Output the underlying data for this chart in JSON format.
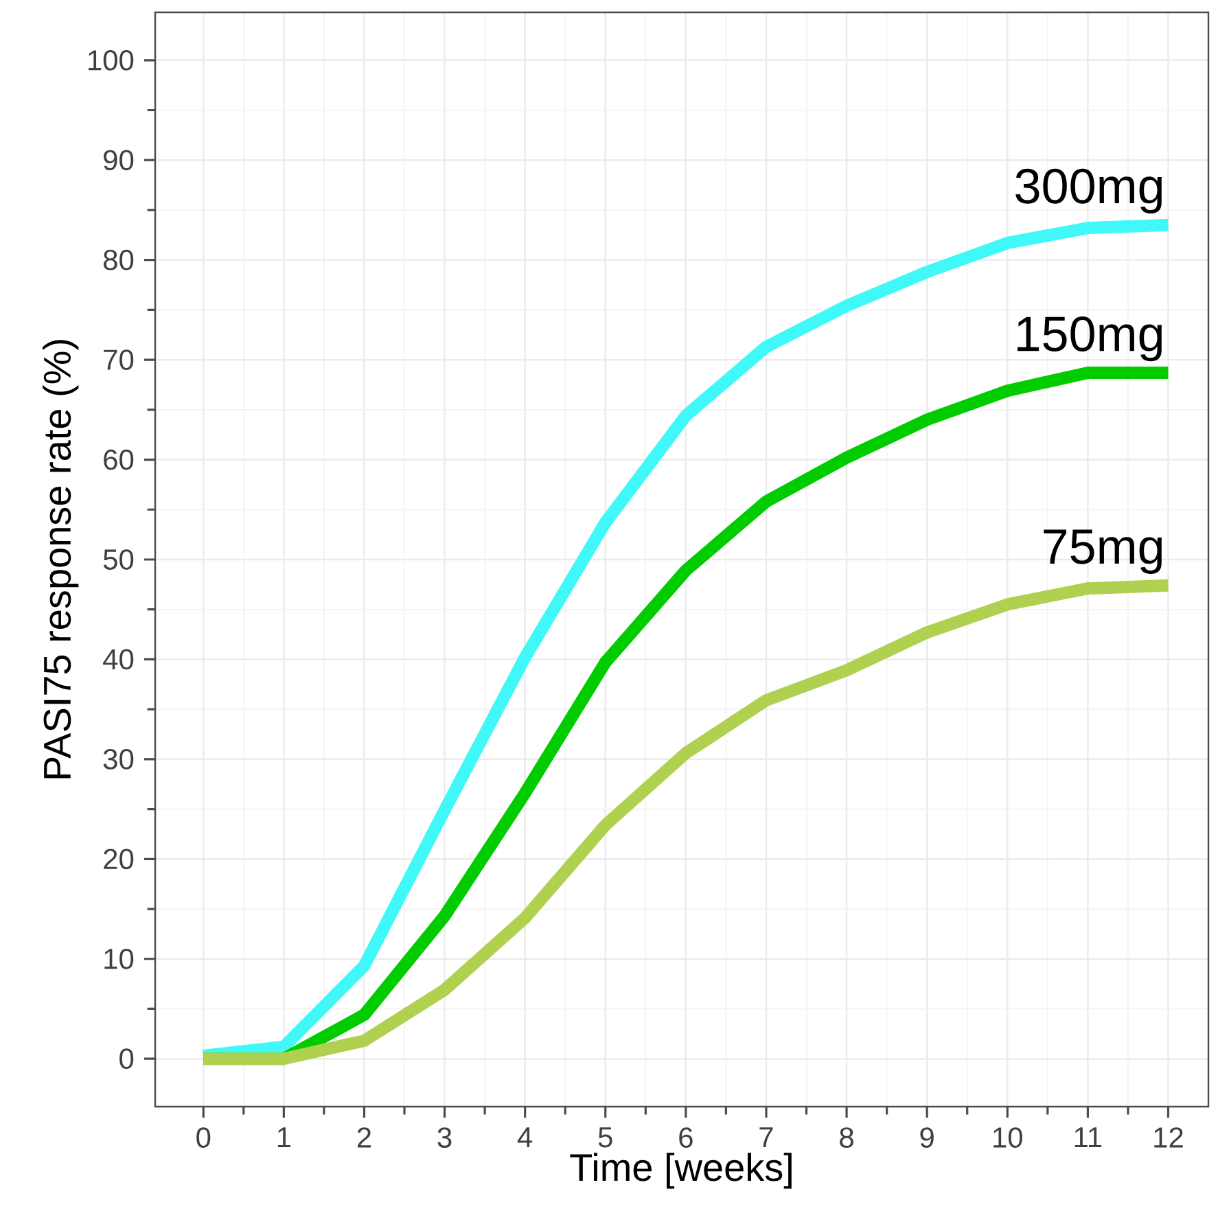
{
  "chart_data": {
    "type": "line",
    "xlabel": "Time [weeks]",
    "ylabel": "PASI75 response rate (%)",
    "x": [
      0,
      1,
      2,
      3,
      4,
      5,
      6,
      7,
      8,
      9,
      10,
      11,
      12
    ],
    "series": [
      {
        "name": "300mg",
        "color": "#40f8f8",
        "values": [
          0.3,
          1.2,
          9.3,
          24.9,
          40.2,
          53.7,
          64.4,
          71.3,
          75.4,
          78.8,
          81.7,
          83.2,
          83.5
        ]
      },
      {
        "name": "150mg",
        "color": "#00cc00",
        "values": [
          0,
          0,
          4.4,
          14.3,
          26.6,
          39.7,
          48.9,
          55.8,
          60.2,
          64.0,
          66.9,
          68.7,
          68.7
        ]
      },
      {
        "name": "75mg",
        "color": "#b0d050",
        "values": [
          0,
          0,
          1.8,
          6.9,
          14.1,
          23.4,
          30.6,
          35.9,
          38.9,
          42.7,
          45.5,
          47.1,
          47.4
        ]
      }
    ],
    "xlim": [
      -0.6,
      12.5
    ],
    "ylim": [
      -4.8,
      104.8
    ],
    "xticks": [
      0,
      1,
      2,
      3,
      4,
      5,
      6,
      7,
      8,
      9,
      10,
      11,
      12
    ],
    "yticks": [
      0,
      10,
      20,
      30,
      40,
      50,
      60,
      70,
      80,
      90,
      100
    ],
    "grid": true,
    "line_style": "solid",
    "marker": "none"
  }
}
